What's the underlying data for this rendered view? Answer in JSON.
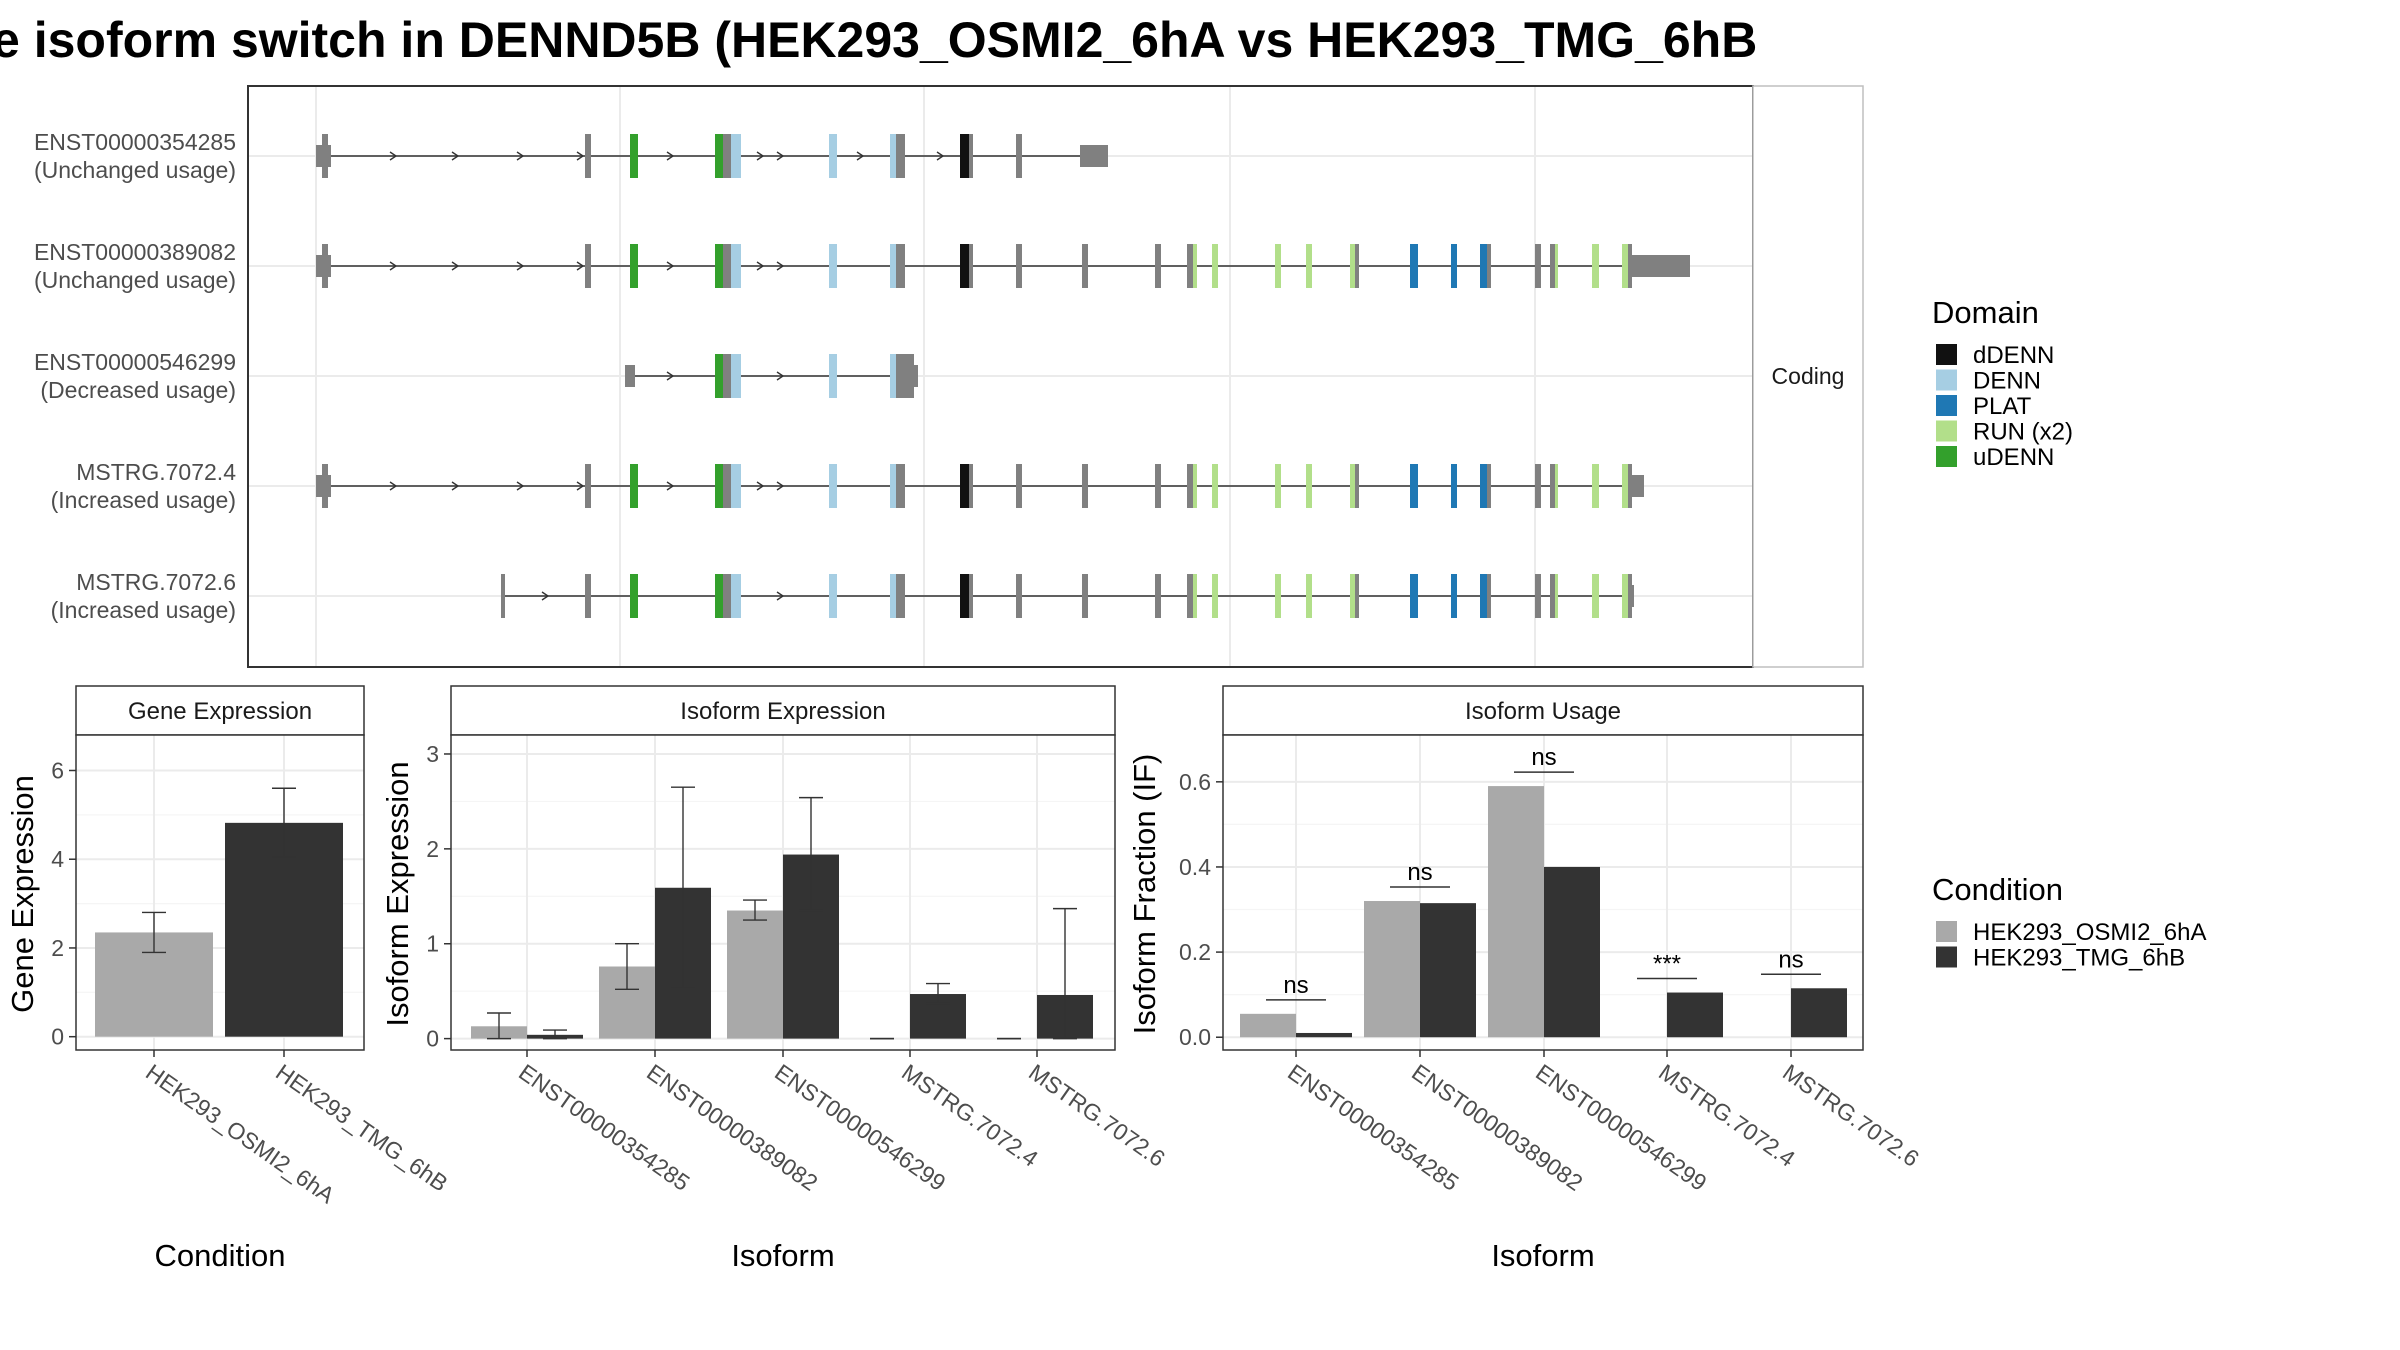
{
  "title": "e isoform switch in DENND5B (HEK293_OSMI2_6hA vs HEK293_TMG_6hB",
  "colors": {
    "condA": "#a9a9a9",
    "condB": "#333333",
    "exon": "#808080",
    "intron": "#333333",
    "grid": "#ebebeb"
  },
  "legends": {
    "domain_title": "Domain",
    "domain": [
      {
        "label": "dDENN",
        "color": "#111111"
      },
      {
        "label": "DENN",
        "color": "#a6cee3"
      },
      {
        "label": "PLAT",
        "color": "#1f78b4"
      },
      {
        "label": "RUN (x2)",
        "color": "#b2df8a"
      },
      {
        "label": "uDENN",
        "color": "#33a02c"
      }
    ],
    "condition_title": "Condition",
    "condition": [
      {
        "label": "HEK293_OSMI2_6hA",
        "color": "#a9a9a9"
      },
      {
        "label": "HEK293_TMG_6hB",
        "color": "#333333"
      }
    ]
  },
  "chart_data": [
    {
      "type": "diagram",
      "facet_label": "Coding",
      "transcripts": [
        {
          "id": "ENST00000354285",
          "status": "(Unchanged usage)"
        },
        {
          "id": "ENST00000389082",
          "status": "(Unchanged usage)"
        },
        {
          "id": "ENST00000546299",
          "status": "(Decreased usage)"
        },
        {
          "id": "MSTRG.7072.4",
          "status": "(Increased usage)"
        },
        {
          "id": "MSTRG.7072.6",
          "status": "(Increased usage)"
        }
      ]
    },
    {
      "type": "bar",
      "title": "Gene Expression",
      "xlabel": "Condition",
      "ylabel": "Gene Expression",
      "categories": [
        "HEK293_OSMI2_6hA",
        "HEK293_TMG_6hB"
      ],
      "values": [
        2.35,
        4.82
      ],
      "errors": [
        [
          1.9,
          2.8
        ],
        [
          4.05,
          5.6
        ]
      ],
      "ylim": [
        -0.3,
        6.8
      ],
      "yticks": [
        "0",
        "2",
        "4",
        "6"
      ]
    },
    {
      "type": "bar",
      "title": "Isoform Expression",
      "xlabel": "Isoform",
      "ylabel": "Isoform Expression",
      "categories": [
        "ENST00000354285",
        "ENST00000389082",
        "ENST00000546299",
        "MSTRG.7072.4",
        "MSTRG.7072.6"
      ],
      "series": [
        {
          "name": "HEK293_OSMI2_6hA",
          "values": [
            0.13,
            0.76,
            1.35,
            0.0,
            0.0
          ],
          "errors": [
            [
              0.0,
              0.27
            ],
            [
              0.52,
              1.0
            ],
            [
              1.25,
              1.46
            ],
            [
              0.0,
              0.0
            ],
            [
              0.0,
              0.0
            ]
          ]
        },
        {
          "name": "HEK293_TMG_6hB",
          "values": [
            0.04,
            1.59,
            1.94,
            0.47,
            0.46
          ],
          "errors": [
            [
              0.0,
              0.09
            ],
            [
              0.53,
              2.65
            ],
            [
              1.35,
              2.54
            ],
            [
              0.37,
              0.58
            ],
            [
              0.0,
              1.37
            ]
          ]
        }
      ],
      "ylim": [
        -0.12,
        3.2
      ],
      "yticks": [
        "0",
        "1",
        "2",
        "3"
      ]
    },
    {
      "type": "bar",
      "title": "Isoform Usage",
      "xlabel": "Isoform",
      "ylabel": "Isoform Fraction (IF)",
      "categories": [
        "ENST00000354285",
        "ENST00000389082",
        "ENST00000546299",
        "MSTRG.7072.4",
        "MSTRG.7072.6"
      ],
      "series": [
        {
          "name": "HEK293_OSMI2_6hA",
          "values": [
            0.055,
            0.32,
            0.59,
            0.0,
            0.0
          ]
        },
        {
          "name": "HEK293_TMG_6hB",
          "values": [
            0.01,
            0.315,
            0.4,
            0.105,
            0.115
          ]
        }
      ],
      "significance": [
        "ns",
        "ns",
        "ns",
        "***",
        "ns"
      ],
      "ylim": [
        -0.03,
        0.71
      ],
      "yticks": [
        "0.0",
        "0.2",
        "0.4",
        "0.6"
      ]
    }
  ]
}
